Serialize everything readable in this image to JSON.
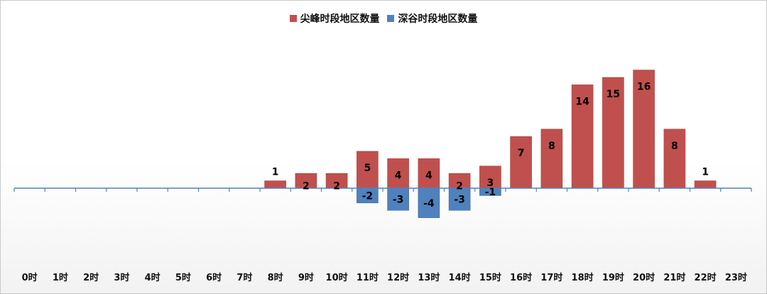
{
  "chart_data": {
    "type": "bar",
    "categories": [
      "0时",
      "1时",
      "2时",
      "3时",
      "4时",
      "5时",
      "6时",
      "7时",
      "8时",
      "9时",
      "10时",
      "11时",
      "12时",
      "13时",
      "14时",
      "15时",
      "16时",
      "17时",
      "18时",
      "19时",
      "20时",
      "21时",
      "22时",
      "23时"
    ],
    "series": [
      {
        "name": "尖峰时段地区数量",
        "color": "#c0504d",
        "values": [
          0,
          0,
          0,
          0,
          0,
          0,
          0,
          0,
          1,
          2,
          2,
          5,
          4,
          4,
          2,
          3,
          7,
          8,
          14,
          15,
          16,
          8,
          1,
          0
        ]
      },
      {
        "name": "深谷时段地区数量",
        "color": "#4f81bd",
        "values": [
          0,
          0,
          0,
          0,
          0,
          0,
          0,
          0,
          0,
          0,
          0,
          -2,
          -3,
          -4,
          -3,
          -1,
          0,
          0,
          0,
          0,
          0,
          0,
          0,
          0
        ]
      }
    ],
    "ylim": [
      -11,
      16
    ],
    "axis_color": "#4f81bd",
    "legend_position": "top",
    "grid": false
  }
}
